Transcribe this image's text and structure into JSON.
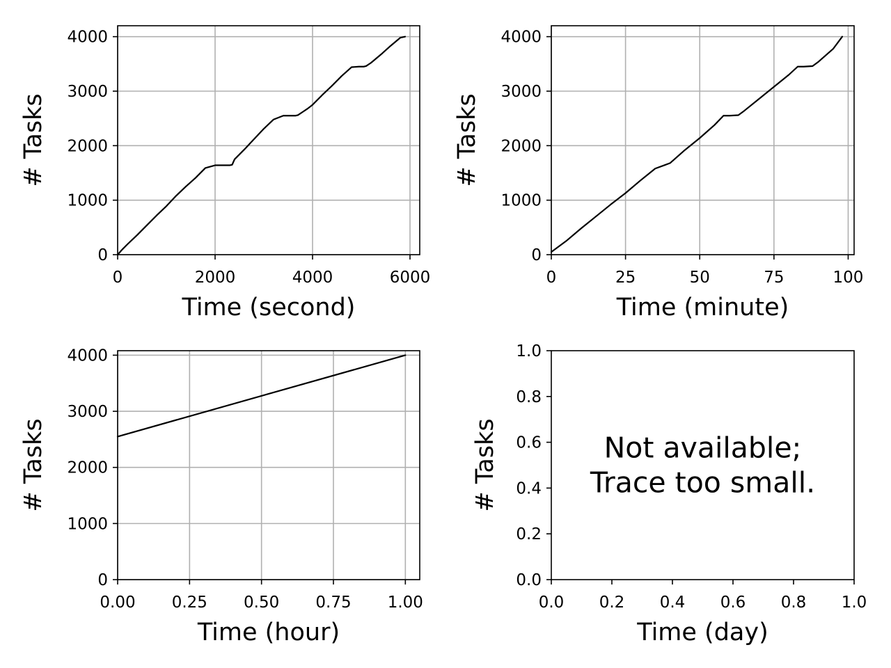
{
  "style": {
    "line_color": "#000000",
    "grid_color": "#b0b0b0",
    "background": "#ffffff"
  },
  "chart_data": [
    {
      "type": "line",
      "xlabel": "Time (second)",
      "ylabel": "# Tasks",
      "xlim": [
        0,
        6200
      ],
      "ylim": [
        0,
        4200
      ],
      "xticks": [
        0,
        2000,
        4000,
        6000
      ],
      "xtick_labels": [
        "0",
        "2000",
        "4000",
        "6000"
      ],
      "yticks": [
        0,
        1000,
        2000,
        3000,
        4000
      ],
      "ytick_labels": [
        "0",
        "1000",
        "2000",
        "3000",
        "4000"
      ],
      "grid": true,
      "x": [
        0,
        100,
        200,
        400,
        600,
        800,
        1000,
        1200,
        1400,
        1600,
        1800,
        2000,
        2200,
        2300,
        2350,
        2400,
        2600,
        2800,
        3000,
        3200,
        3400,
        3500,
        3550,
        3650,
        3700,
        3800,
        3900,
        4000,
        4200,
        4400,
        4600,
        4800,
        4950,
        5000,
        5050,
        5100,
        5200,
        5400,
        5600,
        5800,
        5900
      ],
      "series": [
        {
          "values": [
            0,
            100,
            190,
            360,
            540,
            720,
            890,
            1080,
            1250,
            1410,
            1590,
            1640,
            1640,
            1640,
            1650,
            1750,
            1930,
            2120,
            2310,
            2480,
            2550,
            2550,
            2550,
            2550,
            2560,
            2620,
            2680,
            2750,
            2930,
            3100,
            3280,
            3440,
            3450,
            3450,
            3450,
            3460,
            3520,
            3670,
            3830,
            3980,
            4000
          ]
        }
      ]
    },
    {
      "type": "line",
      "xlabel": "Time (minute)",
      "ylabel": "# Tasks",
      "xlim": [
        0,
        102
      ],
      "ylim": [
        0,
        4200
      ],
      "xticks": [
        0,
        25,
        50,
        75,
        100
      ],
      "xtick_labels": [
        "0",
        "25",
        "50",
        "75",
        "100"
      ],
      "yticks": [
        0,
        1000,
        2000,
        3000,
        4000
      ],
      "ytick_labels": [
        "0",
        "1000",
        "2000",
        "3000",
        "4000"
      ],
      "grid": true,
      "x": [
        0,
        5,
        10,
        15,
        20,
        25,
        30,
        35,
        38,
        40,
        45,
        50,
        55,
        58,
        60,
        63,
        65,
        70,
        75,
        80,
        83,
        85,
        88,
        90,
        95,
        98
      ],
      "series": [
        {
          "values": [
            50,
            250,
            480,
            700,
            920,
            1130,
            1360,
            1580,
            1640,
            1680,
            1920,
            2140,
            2380,
            2550,
            2550,
            2560,
            2640,
            2860,
            3080,
            3300,
            3450,
            3450,
            3460,
            3540,
            3780,
            4000
          ]
        }
      ]
    },
    {
      "type": "line",
      "xlabel": "Time (hour)",
      "ylabel": "# Tasks",
      "xlim": [
        0,
        1.05
      ],
      "ylim": [
        0,
        4080
      ],
      "xticks": [
        0,
        0.25,
        0.5,
        0.75,
        1.0
      ],
      "xtick_labels": [
        "0.00",
        "0.25",
        "0.50",
        "0.75",
        "1.00"
      ],
      "yticks": [
        0,
        1000,
        2000,
        3000,
        4000
      ],
      "ytick_labels": [
        "0",
        "1000",
        "2000",
        "3000",
        "4000"
      ],
      "grid": true,
      "x": [
        0,
        1.0
      ],
      "series": [
        {
          "values": [
            2550,
            4000
          ]
        }
      ]
    },
    {
      "type": "line",
      "xlabel": "Time (day)",
      "ylabel": "# Tasks",
      "xlim": [
        0,
        1
      ],
      "ylim": [
        0,
        1
      ],
      "xticks": [
        0,
        0.2,
        0.4,
        0.6,
        0.8,
        1.0
      ],
      "xtick_labels": [
        "0.0",
        "0.2",
        "0.4",
        "0.6",
        "0.8",
        "1.0"
      ],
      "yticks": [
        0,
        0.2,
        0.4,
        0.6,
        0.8,
        1.0
      ],
      "ytick_labels": [
        "0.0",
        "0.2",
        "0.4",
        "0.6",
        "0.8",
        "1.0"
      ],
      "grid": false,
      "x": [],
      "series": [],
      "annotation": [
        "Not available;",
        "Trace too small."
      ]
    }
  ]
}
